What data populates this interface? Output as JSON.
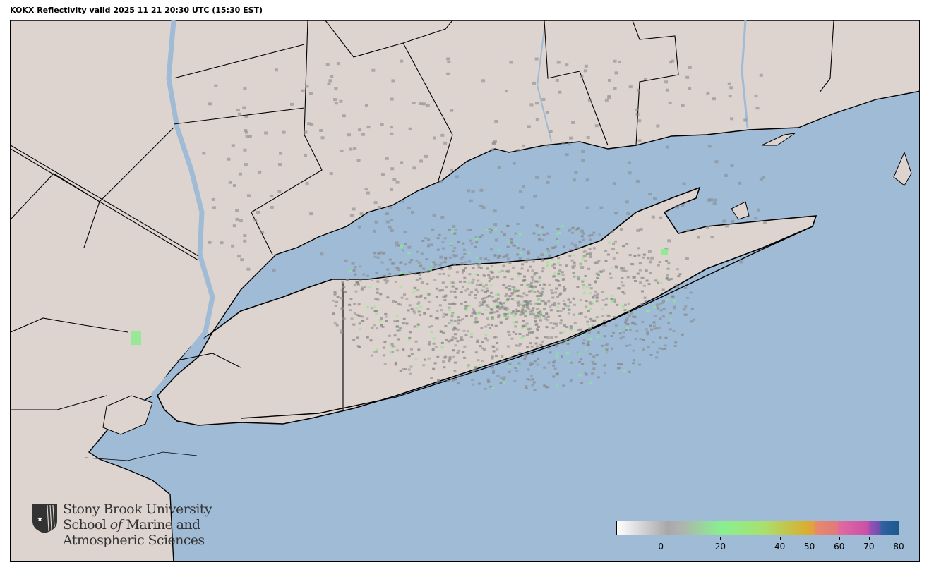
{
  "title": "KOKX Reflectivity valid 2025 11 21 20:30 UTC (15:30 EST)",
  "colors": {
    "land": "#ddd3cf",
    "water": "#9fbbd6",
    "border": "#000000",
    "echo_gray": "#8a8a8a",
    "echo_green": "#88ee88"
  },
  "logo": {
    "line1": "Stony Brook University",
    "line2a": "School ",
    "line2b": "of",
    "line2c": " Marine and",
    "line3": "Atmospheric Sciences",
    "icon": "sbu-shield-icon"
  },
  "colorbar": {
    "range": [
      -15,
      80
    ],
    "ticks": [
      {
        "value": 0,
        "label": "0"
      },
      {
        "value": 20,
        "label": "20"
      },
      {
        "value": 40,
        "label": "40"
      },
      {
        "value": 50,
        "label": "50"
      },
      {
        "value": 60,
        "label": "60"
      },
      {
        "value": 70,
        "label": "70"
      },
      {
        "value": 80,
        "label": "80"
      }
    ]
  }
}
